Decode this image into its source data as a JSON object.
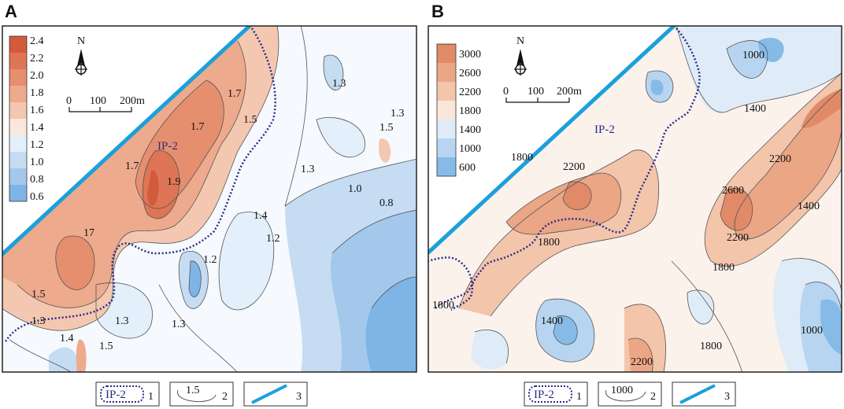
{
  "panels": [
    {
      "letter": "A",
      "north": "N",
      "scale_labels": [
        "0",
        "100",
        "200m"
      ],
      "color_scale": {
        "labels": [
          "2.4",
          "2.2",
          "2.0",
          "1.8",
          "1.6",
          "1.4",
          "1.2",
          "1.0",
          "0.8",
          "0.6"
        ],
        "colors": [
          "#d45a3c",
          "#de7556",
          "#e58f6f",
          "#edaa8c",
          "#f4c8b0",
          "#fbe8dd",
          "#e3effa",
          "#c5dcf2",
          "#a4c8ec",
          "#7fb4e6"
        ]
      },
      "zone_label": "IP-2",
      "contour_labels": [
        "1.7",
        "1.7",
        "1.5",
        "1.3",
        "1.3",
        "1.5",
        "1.7",
        "1.9",
        "1.3",
        "1.0",
        "0.8",
        "1.4",
        "1.2",
        "17",
        "1.2",
        "1.5",
        "1.3",
        "1.3",
        "1.3",
        "1.4",
        "1.5"
      ]
    },
    {
      "letter": "B",
      "north": "N",
      "scale_labels": [
        "0",
        "100",
        "200m"
      ],
      "color_scale": {
        "labels": [
          "3000",
          "2600",
          "2200",
          "1800",
          "1400",
          "1000",
          "600"
        ],
        "colors": [
          "#e08a68",
          "#eba686",
          "#f3c5ab",
          "#fbe6da",
          "#dfecf8",
          "#b7d5f0",
          "#86bbe8"
        ]
      },
      "zone_label": "IP-2",
      "contour_labels": [
        "1000",
        "1400",
        "1800",
        "2200",
        "2200",
        "2600",
        "2200",
        "1800",
        "1400",
        "1800",
        "1800",
        "1400",
        "1800",
        "1000",
        "2200"
      ]
    }
  ],
  "legend": {
    "items": [
      {
        "number": "1",
        "text": "IP-2"
      },
      {
        "number": "2",
        "text": "1.5"
      },
      {
        "number": "3",
        "text": ""
      }
    ],
    "items_b": [
      {
        "number": "1",
        "text": "IP-2"
      },
      {
        "number": "2",
        "text": "1000"
      },
      {
        "number": "3",
        "text": ""
      }
    ]
  },
  "colors": {
    "fault": "#1ba0db",
    "boundary": "#2a2a8a",
    "contour": "#555555"
  }
}
